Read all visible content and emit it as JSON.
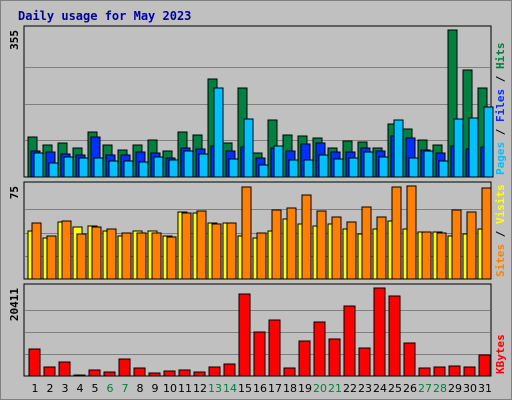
{
  "chart_data": {
    "type": "bar",
    "title": "Daily usage for May 2023",
    "days": [
      "1",
      "2",
      "3",
      "4",
      "5",
      "6",
      "7",
      "8",
      "9",
      "10",
      "11",
      "12",
      "13",
      "14",
      "15",
      "16",
      "17",
      "18",
      "19",
      "20",
      "21",
      "22",
      "23",
      "24",
      "25",
      "26",
      "27",
      "28",
      "29",
      "30",
      "31"
    ],
    "weekend_days": [
      6,
      7,
      13,
      14,
      20,
      21,
      27,
      28
    ],
    "panels": [
      {
        "key": "hits_files_pages",
        "max_label": "355",
        "ymax": 355,
        "side_label": [
          {
            "text": "Pages",
            "color": "#00c0ff"
          },
          {
            "text": " / ",
            "color": "#000000"
          },
          {
            "text": "Files",
            "color": "#0030ff"
          },
          {
            "text": " / ",
            "color": "#000000"
          },
          {
            "text": "Hits",
            "color": "#008040"
          }
        ],
        "series": [
          {
            "name": "Hits",
            "color": "#008040",
            "values": [
              96,
              77,
              82,
              70,
              109,
              77,
              65,
              77,
              90,
              63,
              109,
              101,
              236,
              82,
              214,
              57,
              138,
              101,
              98,
              93,
              70,
              86,
              85,
              70,
              127,
              117,
              90,
              78,
              355,
              258,
              215
            ]
          },
          {
            "name": "Files",
            "color": "#0030ff",
            "values": [
              62,
              60,
              55,
              52,
              96,
              53,
              52,
              60,
              57,
              47,
              69,
              67,
              76,
              62,
              72,
              47,
              71,
              62,
              79,
              83,
              60,
              60,
              70,
              63,
              99,
              95,
              64,
              57,
              76,
              67,
              73
            ]
          },
          {
            "name": "Pages",
            "color": "#00c0ff",
            "values": [
              58,
              33,
              49,
              45,
              45,
              39,
              39,
              37,
              49,
              40,
              63,
              55,
              214,
              44,
              141,
              30,
              76,
              40,
              42,
              52,
              44,
              45,
              60,
              49,
              137,
              46,
              63,
              38,
              140,
              142,
              168
            ]
          }
        ]
      },
      {
        "key": "visits_sites",
        "max_label": "75",
        "ymax": 75,
        "side_label": [
          {
            "text": "Sites",
            "color": "#ff8000"
          },
          {
            "text": " / ",
            "color": "#000000"
          },
          {
            "text": "Visits",
            "color": "#ffff00"
          }
        ],
        "series": [
          {
            "name": "Visits",
            "color": "#ffff00",
            "values": [
              39,
              33,
              46,
              42,
              43,
              39,
              35,
              39,
              39,
              35,
              54,
              53,
              45,
              45,
              35,
              33,
              39,
              48,
              44,
              43,
              44,
              40,
              36,
              40,
              47,
              40,
              38,
              38,
              35,
              36,
              40
            ]
          },
          {
            "name": "Sites",
            "color": "#ff8000",
            "values": [
              45,
              35,
              47,
              36,
              42,
              40,
              37,
              37,
              37,
              34,
              53,
              55,
              44,
              45,
              74,
              37,
              56,
              57,
              68,
              55,
              50,
              46,
              58,
              50,
              74,
              75,
              38,
              37,
              56,
              54,
              73
            ]
          }
        ]
      },
      {
        "key": "kbytes",
        "max_label": "20411",
        "ymax": 20411,
        "side_label": [
          {
            "text": "KBytes",
            "color": "#ff0000"
          }
        ],
        "series": [
          {
            "name": "KBytes",
            "color": "#ff0000",
            "values": [
              6300,
              1980,
              3280,
              300,
              1300,
              900,
              3980,
              1800,
              700,
              1100,
              1350,
              900,
              2150,
              2700,
              19000,
              10200,
              13100,
              1890,
              8200,
              12600,
              8600,
              16300,
              6500,
              20411,
              18600,
              7600,
              1800,
              2200,
              2400,
              2050,
              4850
            ]
          }
        ]
      }
    ]
  }
}
